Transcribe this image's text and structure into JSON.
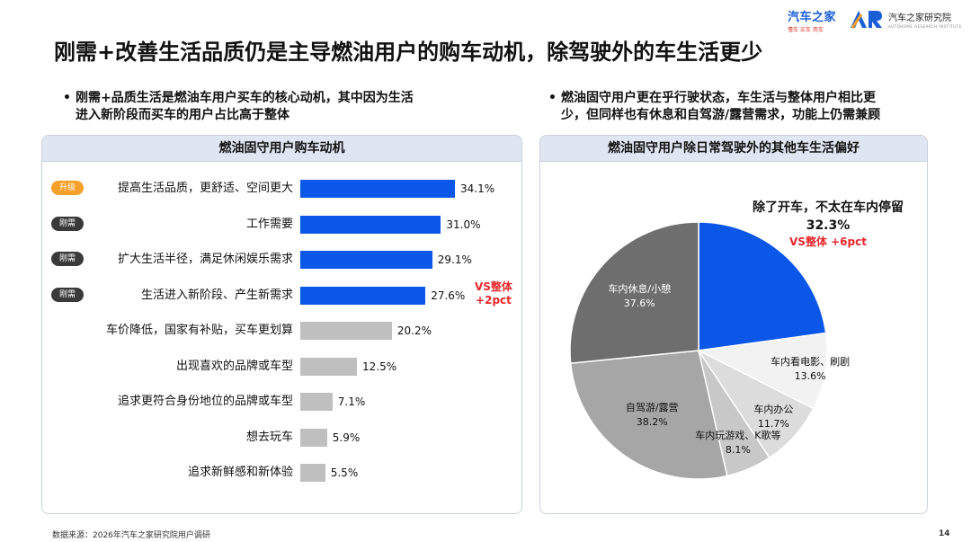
{
  "brand": {
    "logo_main": "汽车之家",
    "logo_slogan": "懂车 买车 用车",
    "institute_name": "汽车之家研究院",
    "institute_en": "AUTOHOME RESEARCH INSTITUTE",
    "colors": {
      "blue": "#1a5fd6",
      "red": "#e8262b",
      "orange": "#f5a02a"
    }
  },
  "title": "刚需+改善生活品质仍是主导燃油用户的购车动机，除驾驶外的车生活更少",
  "bullets": {
    "left": {
      "line1": "刚需+品质生活是燃油车用户买车的核心动机，其中因为生活",
      "line2": "进入新阶段而买车的用户占比高于整体"
    },
    "right": {
      "line1": "燃油固守用户更在乎行驶状态，车生活与整体用户相比更",
      "line2": "少，但同样也有休息和自驾游/露营需求，功能上仍需兼顾"
    }
  },
  "chart_data": [
    {
      "type": "bar",
      "orientation": "horizontal",
      "title": "燃油固守用户购车动机",
      "categories": [
        "提高生活品质，更舒适、空间更大",
        "工作需要",
        "扩大生活半径，满足休闲娱乐需求",
        "生活进入新阶段、产生新需求",
        "车价降低，国家有补贴，买车更划算",
        "出现喜欢的品牌或车型",
        "追求更符合身份地位的品牌或车型",
        "想去玩车",
        "追求新鲜感和新体验"
      ],
      "values": [
        34.1,
        31.0,
        29.1,
        27.6,
        20.2,
        12.5,
        7.1,
        5.9,
        5.5
      ],
      "value_labels": [
        "34.1%",
        "31.0%",
        "29.1%",
        "27.6%",
        "20.2%",
        "12.5%",
        "7.1%",
        "5.9%",
        "5.5%"
      ],
      "tags": [
        "升级",
        "刚需",
        "刚需",
        "刚需",
        "",
        "",
        "",
        "",
        ""
      ],
      "highlighted": [
        true,
        true,
        true,
        true,
        false,
        false,
        false,
        false,
        false
      ],
      "colors": {
        "highlight": "#0b57e8",
        "other": "#bfbfbf"
      },
      "annotation": {
        "line1": "VS整体",
        "line2": "+2pct"
      }
    },
    {
      "type": "pie",
      "title": "燃油固守用户除日常驾驶外的其他车生活偏好",
      "labels": [
        "除了开车，不太在车内停留",
        "车内看电影、刷剧",
        "车内办公",
        "车内玩游戏、K歌等",
        "自驾游/露营",
        "车内休息/小憩"
      ],
      "values": [
        32.3,
        13.6,
        11.7,
        8.1,
        38.2,
        37.6
      ],
      "value_labels": [
        "32.3%",
        "13.6%",
        "11.7%",
        "8.1%",
        "38.2%",
        "37.6%"
      ],
      "colors": [
        "#0b57e8",
        "#f2f2f2",
        "#dcdcdc",
        "#c8c8c8",
        "#a6a6a6",
        "#6e6e6e"
      ],
      "annotation": "VS整体 +6pct"
    }
  ],
  "footer": {
    "source": "数据来源：2026年汽车之家研究院用户调研",
    "page": "14"
  }
}
